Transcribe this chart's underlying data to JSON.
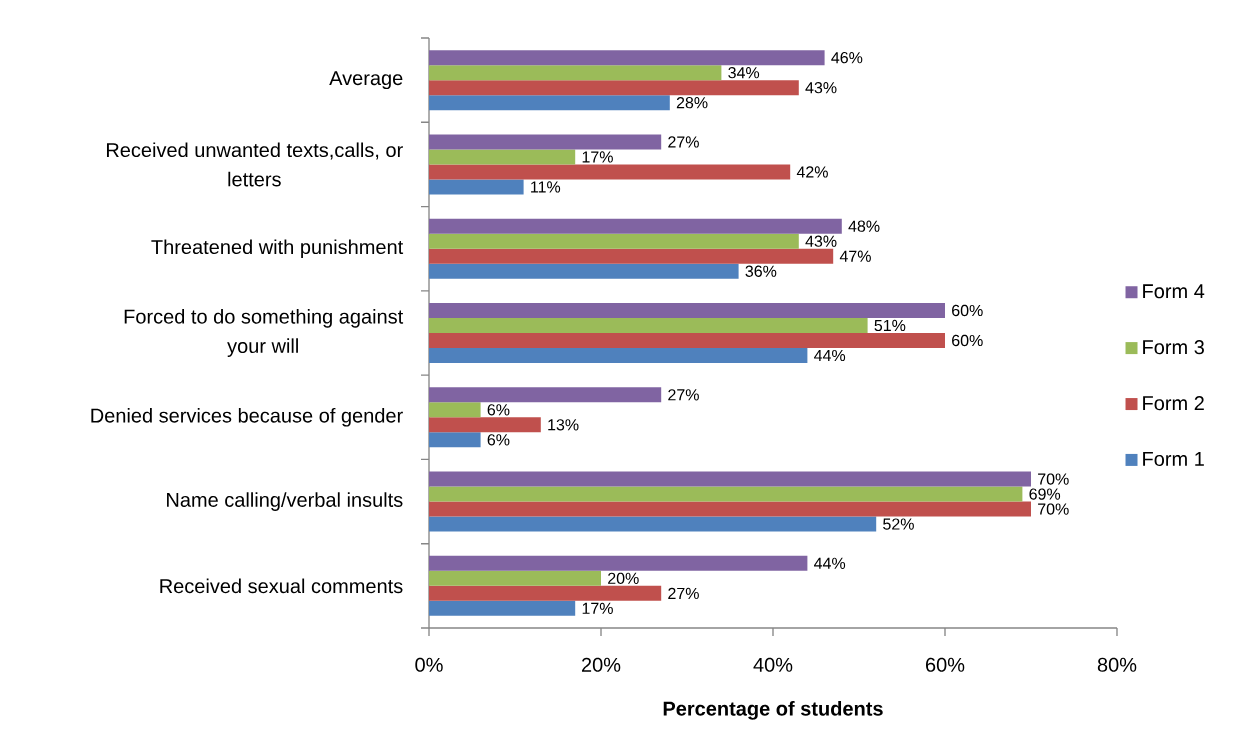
{
  "chart_data": {
    "type": "bar",
    "orientation": "horizontal",
    "legend": "right",
    "xlabel": "Percentage of students",
    "categories": [
      "Average",
      "Received unwanted texts,calls, or letters",
      "Threatened with punishment",
      "Forced to do something against your will",
      "Denied services because of gender",
      "Name calling/verbal insults",
      "Received sexual comments"
    ],
    "xlim": [
      0,
      80
    ],
    "xticks": [
      {
        "value": 0,
        "label": "0%"
      },
      {
        "value": 20,
        "label": "20%"
      },
      {
        "value": 40,
        "label": "40%"
      },
      {
        "value": 60,
        "label": "60%"
      },
      {
        "value": 80,
        "label": "80%"
      }
    ],
    "series": [
      {
        "name": "Form 1",
        "color": "#4f81bd",
        "values": [
          28,
          11,
          36,
          44,
          6,
          52,
          17
        ],
        "value_labels": [
          "28%",
          "11%",
          "36%",
          "44%",
          "6%",
          "52%",
          "17%"
        ]
      },
      {
        "name": "Form 2",
        "color": "#c0504d",
        "values": [
          43,
          42,
          47,
          60,
          13,
          70,
          27
        ],
        "value_labels": [
          "43%",
          "42%",
          "47%",
          "60%",
          "13%",
          "70%",
          "27%"
        ]
      },
      {
        "name": "Form 3",
        "color": "#9bbb59",
        "values": [
          34,
          17,
          43,
          51,
          6,
          69,
          20
        ],
        "value_labels": [
          "34%",
          "17%",
          "43%",
          "51%",
          "6%",
          "69%",
          "20%"
        ]
      },
      {
        "name": "Form 4",
        "color": "#8064a2",
        "values": [
          46,
          27,
          48,
          60,
          27,
          70,
          44
        ],
        "value_labels": [
          "46%",
          "27%",
          "48%",
          "60%",
          "27%",
          "70%",
          "44%"
        ]
      }
    ]
  }
}
